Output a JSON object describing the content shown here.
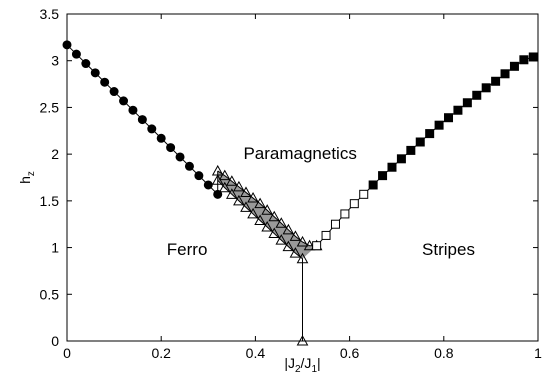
{
  "chart_data": {
    "type": "scatter",
    "title": "",
    "xlabel": "|J2/J1|",
    "ylabel": "hz",
    "xlim": [
      0,
      1
    ],
    "ylim": [
      0,
      3.5
    ],
    "xticks": [
      "0",
      "0.2",
      "0.4",
      "0.6",
      "0.8",
      "1"
    ],
    "yticks": [
      "0",
      "0.5",
      "1",
      "1.5",
      "2",
      "2.5",
      "3",
      "3.5"
    ],
    "grid": false,
    "legend": "none",
    "region_labels": {
      "ferro": "Ferro",
      "paramagnetics": "Paramagnetics",
      "stripes": "Stripes"
    },
    "series": [
      {
        "marker": "filled-circle",
        "x": [
          0,
          0.02,
          0.04,
          0.06,
          0.08,
          0.1,
          0.12,
          0.14,
          0.16,
          0.18,
          0.2,
          0.22,
          0.24,
          0.26,
          0.28,
          0.3,
          0.32
        ],
        "y": [
          3.17,
          3.07,
          2.97,
          2.87,
          2.77,
          2.67,
          2.57,
          2.47,
          2.37,
          2.27,
          2.17,
          2.07,
          1.97,
          1.87,
          1.77,
          1.67,
          1.57
        ]
      },
      {
        "marker": "open-triangle",
        "x": [
          0.32,
          0.335,
          0.35,
          0.365,
          0.38,
          0.395,
          0.41,
          0.425,
          0.44,
          0.455,
          0.47,
          0.485,
          0.5,
          0.515,
          0.53
        ],
        "y": [
          1.82,
          1.77,
          1.71,
          1.65,
          1.59,
          1.53,
          1.47,
          1.4,
          1.33,
          1.26,
          1.19,
          1.12,
          1.06,
          1.02,
          1.02
        ]
      },
      {
        "marker": "open-triangle",
        "x": [
          0.32,
          0.335,
          0.35,
          0.365,
          0.38,
          0.395,
          0.41,
          0.425,
          0.44,
          0.455,
          0.47,
          0.485,
          0.5,
          0.5
        ],
        "y": [
          1.72,
          1.64,
          1.57,
          1.5,
          1.43,
          1.36,
          1.29,
          1.22,
          1.15,
          1.08,
          1.01,
          0.94,
          0.88,
          0.0
        ]
      },
      {
        "marker": "open-square",
        "x": [
          0.53,
          0.55,
          0.57,
          0.59,
          0.61,
          0.63
        ],
        "y": [
          1.02,
          1.13,
          1.25,
          1.36,
          1.47,
          1.57
        ]
      },
      {
        "marker": "filled-square",
        "x": [
          0.65,
          0.67,
          0.69,
          0.71,
          0.73,
          0.75,
          0.77,
          0.79,
          0.81,
          0.83,
          0.85,
          0.87,
          0.89,
          0.91,
          0.93,
          0.95,
          0.97,
          0.99
        ],
        "y": [
          1.67,
          1.77,
          1.86,
          1.95,
          2.04,
          2.13,
          2.22,
          2.31,
          2.39,
          2.47,
          2.55,
          2.63,
          2.71,
          2.78,
          2.86,
          2.94,
          3.01,
          3.04
        ]
      }
    ]
  }
}
